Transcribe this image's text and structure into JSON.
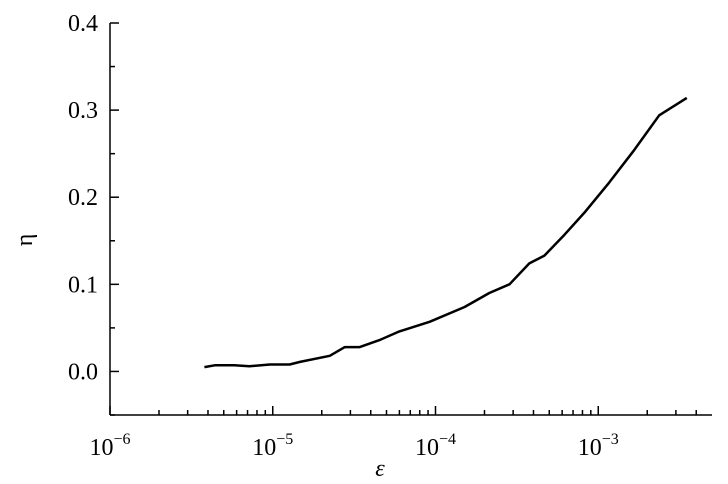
{
  "chart_data": {
    "type": "line",
    "x_label": "ε",
    "y_label": "η",
    "x_scale": "log",
    "xlim": [
      1e-06,
      0.005
    ],
    "xticks": [
      {
        "value": 1e-06,
        "label": {
          "base": "10",
          "exponent": "−6"
        }
      },
      {
        "value": 1e-05,
        "label": {
          "base": "10",
          "exponent": "−5"
        }
      },
      {
        "value": 0.0001,
        "label": {
          "base": "10",
          "exponent": "−4"
        }
      },
      {
        "value": 0.001,
        "label": {
          "base": "10",
          "exponent": "−3"
        }
      }
    ],
    "xminorticks": [
      2e-06,
      3e-06,
      4e-06,
      5e-06,
      6e-06,
      7e-06,
      8e-06,
      9e-06,
      2e-05,
      3e-05,
      4e-05,
      5e-05,
      6e-05,
      7e-05,
      8e-05,
      9e-05,
      0.0002,
      0.0003,
      0.0004,
      0.0005,
      0.0006,
      0.0007,
      0.0008,
      0.0009,
      0.002,
      0.003,
      0.004
    ],
    "ylim": [
      -0.05,
      0.4
    ],
    "yticks": [
      {
        "value": 0,
        "label": "0.0"
      },
      0.1,
      0.2,
      0.3,
      0.4
    ],
    "yminorticks": [
      -0.05,
      0.05,
      0.15,
      0.25,
      0.35
    ],
    "color": "#000000",
    "x": [
      3.8e-06,
      4.4e-06,
      5.8e-06,
      7.2e-06,
      9.6e-06,
      1.27e-05,
      1.47e-05,
      2.24e-05,
      2.77e-05,
      3.42e-05,
      4.53e-05,
      6e-05,
      9.2e-05,
      0.000151,
      0.000214,
      0.000285,
      0.000377,
      0.000467,
      0.00062,
      0.00082,
      0.00117,
      0.00166,
      0.00237,
      0.0035
    ],
    "values": [
      0.005,
      0.007,
      0.007,
      0.006,
      0.008,
      0.008,
      0.011,
      0.018,
      0.028,
      0.028,
      0.036,
      0.046,
      0.057,
      0.074,
      0.09,
      0.1,
      0.124,
      0.133,
      0.157,
      0.182,
      0.217,
      0.254,
      0.294,
      0.314
    ]
  }
}
